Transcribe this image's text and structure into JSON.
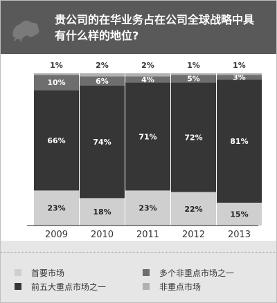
{
  "header": {
    "title": "贵公司的在华业务占在公司全球战略中具\n有什么样的地位?"
  },
  "colors": {
    "header_bg": "#595959",
    "primary_market": "#cfcfcf",
    "top_five_market": "#363636",
    "one_of_several": "#6e6e6e",
    "not_key": "#b0b0b0"
  },
  "legend": [
    {
      "label": "首要市场",
      "color": "#cfcfcf"
    },
    {
      "label": "多个非重点市场之一",
      "color": "#6e6e6e"
    },
    {
      "label": "前五大重点市场之一",
      "color": "#363636"
    },
    {
      "label": "非重点市场",
      "color": "#b0b0b0"
    }
  ],
  "chart_data": {
    "type": "bar",
    "stacked": true,
    "categories": [
      "2009",
      "2010",
      "2011",
      "2012",
      "2013"
    ],
    "series": [
      {
        "name": "首要市场",
        "color": "#cfcfcf",
        "label_color": "#222222",
        "values": [
          23,
          18,
          23,
          22,
          15
        ]
      },
      {
        "name": "前五大重点市场之一",
        "color": "#363636",
        "label_color": "#ffffff",
        "values": [
          66,
          74,
          71,
          72,
          81
        ]
      },
      {
        "name": "多个非重点市场之一",
        "color": "#6e6e6e",
        "label_color": "#ffffff",
        "values": [
          10,
          6,
          4,
          5,
          3
        ]
      },
      {
        "name": "非重点市场",
        "color": "#b0b0b0",
        "label_color": "#222222",
        "values": [
          1,
          2,
          2,
          1,
          1
        ]
      }
    ],
    "unit": "%",
    "ylim": [
      0,
      100
    ]
  }
}
